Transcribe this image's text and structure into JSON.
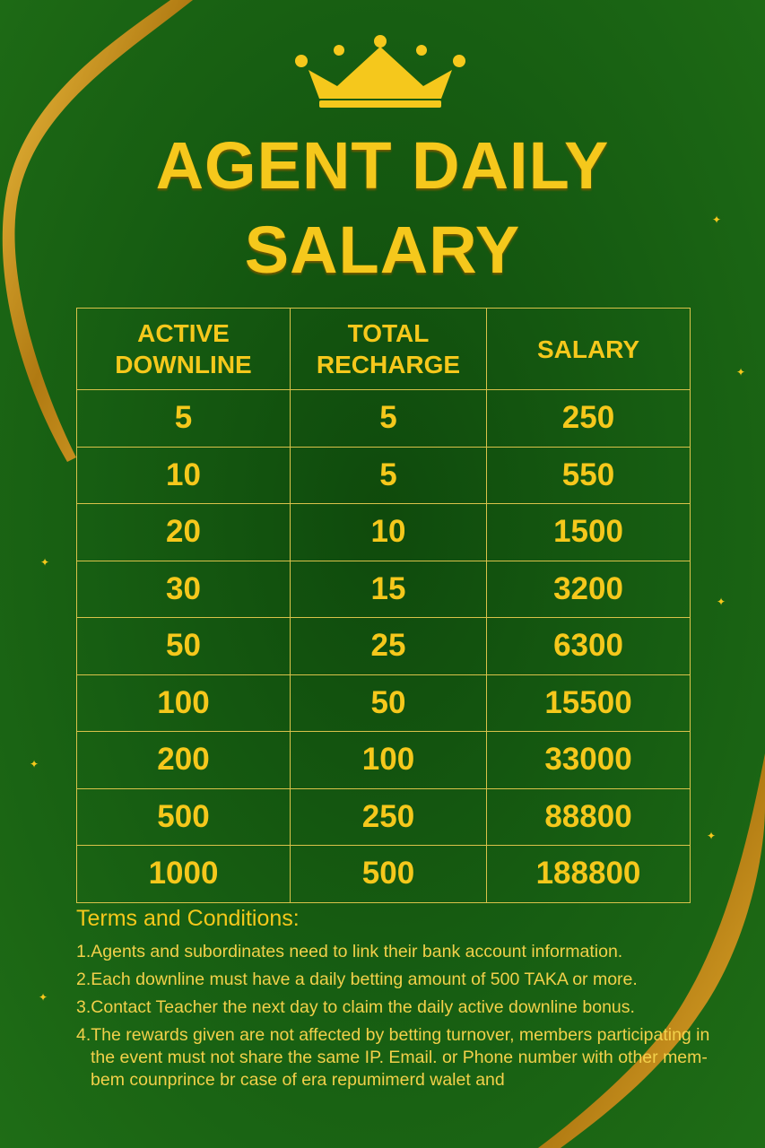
{
  "title_line1": "AGENT DAILY",
  "title_line2": "SALARY",
  "table": {
    "headers": [
      "ACTIVE DOWNLINE",
      "TOTAL RECHARGE",
      "SALARY"
    ],
    "header_lines": [
      [
        "ACTIVE",
        "DOWNLINE"
      ],
      [
        "TOTAL",
        "RECHARGE"
      ],
      [
        "SALARY"
      ]
    ],
    "rows": [
      [
        "5",
        "5",
        "250"
      ],
      [
        "10",
        "5",
        "550"
      ],
      [
        "20",
        "10",
        "1500"
      ],
      [
        "30",
        "15",
        "3200"
      ],
      [
        "50",
        "25",
        "6300"
      ],
      [
        "100",
        "50",
        "15500"
      ],
      [
        "200",
        "100",
        "33000"
      ],
      [
        "500",
        "250",
        "88800"
      ],
      [
        "1000",
        "500",
        "188800"
      ]
    ]
  },
  "terms": {
    "heading": "Terms and Conditions:",
    "items": [
      "1.Agents and subordinates need to link their bank account information.",
      "2.Each downline must have a daily betting amount of 500 TAKA or more.",
      "3.Contact Teacher the next day to claim the daily active downline bonus.",
      "4.The rewards given are not affected by betting turnover, members participating in the event must not share the same IP. Email. or Phone number with other mem-bem counprince br case of era repumimerd walet and"
    ]
  },
  "colors": {
    "background": "#175e12",
    "gold": "#f5c81c",
    "ribbon": "#c8901a"
  },
  "icons": [
    "crown-icon",
    "sparkle-icon"
  ]
}
